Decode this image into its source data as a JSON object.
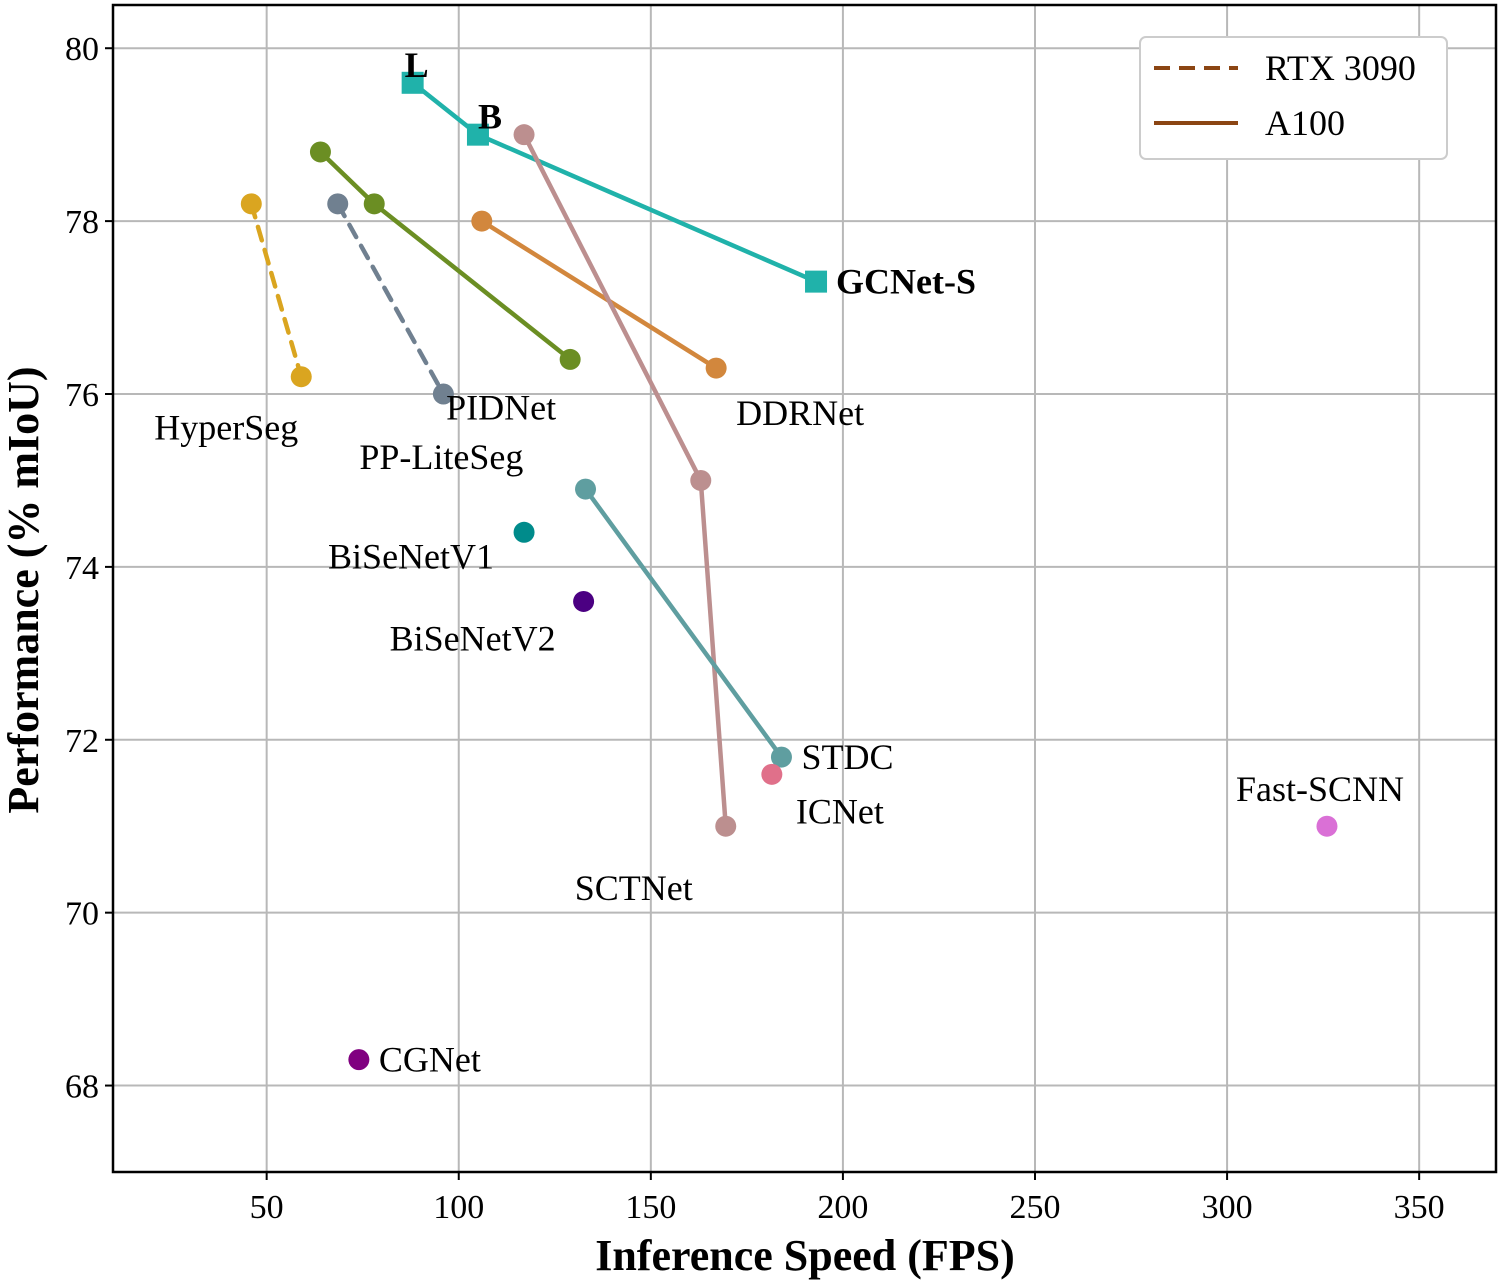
{
  "chart_data": {
    "type": "scatter",
    "xlabel": "Inference Speed (FPS)",
    "ylabel": "Performance (% mIoU)",
    "xlim": [
      10,
      370
    ],
    "ylim": [
      67,
      80.5
    ],
    "xticks": [
      50,
      100,
      150,
      200,
      250,
      300,
      350
    ],
    "yticks": [
      68,
      70,
      72,
      74,
      76,
      78,
      80
    ],
    "grid": true,
    "legend_position": "top-right",
    "legend": [
      {
        "label": "RTX 3090",
        "style": "dashed",
        "color": "#8B4513"
      },
      {
        "label": "A100",
        "style": "solid",
        "color": "#8B4513"
      }
    ],
    "series": [
      {
        "name": "GCNet-S",
        "color": "#20B2AA",
        "marker": "square",
        "line": "solid",
        "x": [
          88,
          105,
          193
        ],
        "y": [
          79.6,
          79.0,
          77.3
        ],
        "point_labels": [
          "L",
          "B",
          "GCNet-S"
        ]
      },
      {
        "name": "DDRNet",
        "color": "#D2873D",
        "marker": "circle",
        "line": "solid",
        "x": [
          106,
          167
        ],
        "y": [
          78.0,
          76.3
        ]
      },
      {
        "name": "PIDNet",
        "color": "#6B8E23",
        "marker": "circle",
        "line": "solid",
        "x": [
          64,
          78,
          129
        ],
        "y": [
          78.8,
          78.2,
          76.4
        ]
      },
      {
        "name": "PP-LiteSeg",
        "color": "#708090",
        "marker": "circle",
        "line": "dashed",
        "x": [
          68.5,
          96
        ],
        "y": [
          78.2,
          76.0
        ]
      },
      {
        "name": "HyperSeg",
        "color": "#DAA520",
        "marker": "circle",
        "line": "dashed",
        "x": [
          46,
          59
        ],
        "y": [
          78.2,
          76.2
        ]
      },
      {
        "name": "SCTNet",
        "color": "#BC8F8F",
        "marker": "circle",
        "line": "solid",
        "x": [
          117,
          163,
          169.5
        ],
        "y": [
          79.0,
          75.0,
          71.0
        ]
      },
      {
        "name": "STDC",
        "color": "#5F9EA0",
        "marker": "circle",
        "line": "solid",
        "x": [
          133,
          184
        ],
        "y": [
          74.9,
          71.8
        ]
      },
      {
        "name": "BiSeNetV1",
        "color": "#008B8B",
        "marker": "circle",
        "line": "none",
        "x": [
          117
        ],
        "y": [
          74.4
        ]
      },
      {
        "name": "BiSeNetV2",
        "color": "#4B0082",
        "marker": "circle",
        "line": "none",
        "x": [
          132.5
        ],
        "y": [
          73.6
        ]
      },
      {
        "name": "ICNet",
        "color": "#E0708A",
        "marker": "circle",
        "line": "none",
        "x": [
          181.5
        ],
        "y": [
          71.6
        ]
      },
      {
        "name": "Fast-SCNN",
        "color": "#DA70D6",
        "marker": "circle",
        "line": "none",
        "x": [
          326
        ],
        "y": [
          71.0
        ]
      },
      {
        "name": "CGNet",
        "color": "#800080",
        "marker": "circle",
        "line": "none",
        "x": [
          74
        ],
        "y": [
          68.3
        ]
      }
    ]
  }
}
